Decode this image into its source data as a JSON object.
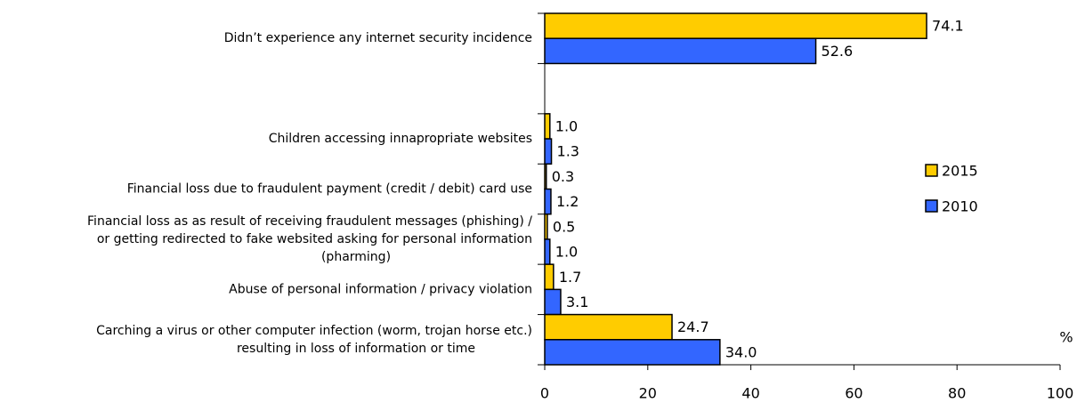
{
  "chart_data": {
    "type": "bar",
    "orientation": "horizontal",
    "x_label": "%",
    "categories": [
      [
        "Didn’t experience any internet security incidence"
      ],
      null,
      [
        "Children accessing innapropriate websites"
      ],
      [
        "Financial loss due to fraudulent  payment (credit / debit) card use"
      ],
      [
        "Financial loss as as result of receiving  fraudulent messages (phishing) /",
        "or getting redirected to fake websited asking for personal information",
        "(pharming)"
      ],
      [
        "Abuse of personal information  / privacy violation"
      ],
      [
        "Carching a virus or other computer infection (worm, trojan horse etc.)",
        "resulting in loss of information or time"
      ]
    ],
    "series": [
      {
        "name": "2015",
        "color": "#ffcc00",
        "values": [
          74.1,
          null,
          1.0,
          0.3,
          0.5,
          1.7,
          24.7
        ],
        "value_labels": [
          "74.1",
          null,
          "1.0",
          "0.3",
          "0.5",
          "1.7",
          "24.7"
        ]
      },
      {
        "name": "2010",
        "color": "#3366ff",
        "values": [
          52.6,
          null,
          1.3,
          1.2,
          1.0,
          3.1,
          34.0
        ],
        "value_labels": [
          "52.6",
          null,
          "1.3",
          "1.2",
          "1.0",
          "3.1",
          "34.0"
        ]
      }
    ],
    "xlim": [
      0,
      100
    ],
    "xticks": [
      0,
      20,
      40,
      60,
      80,
      100
    ],
    "legend": "right"
  }
}
